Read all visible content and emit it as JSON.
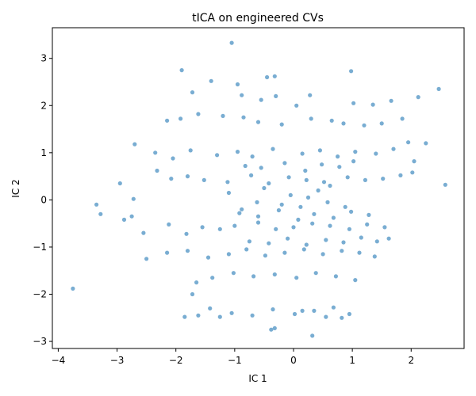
{
  "chart_data": {
    "type": "scatter",
    "title": "tICA on engineered CVs",
    "xlabel": "IC 1",
    "ylabel": "IC 2",
    "xlim": [
      -4.1,
      2.9
    ],
    "ylim": [
      -3.15,
      3.65
    ],
    "xticks": [
      "-4",
      "-3",
      "-2",
      "-1",
      "0",
      "1",
      "2"
    ],
    "yticks": [
      "-3",
      "-2",
      "-1",
      "0",
      "1",
      "2",
      "3"
    ],
    "grid": false,
    "point_color": "#1f77b4",
    "series": [
      {
        "x": [
          -1.05,
          -1.9,
          0.98,
          -0.45,
          -0.32,
          -0.95,
          -1.4,
          -1.72,
          -0.88,
          -0.55,
          -0.3,
          0.05,
          0.28,
          1.02,
          1.35,
          1.66,
          2.12,
          2.47,
          -2.15,
          -1.92,
          -1.62,
          -1.2,
          -0.85,
          -0.6,
          -0.2,
          0.3,
          0.65,
          0.85,
          1.2,
          1.5,
          1.85,
          2.25,
          -2.7,
          -2.35,
          -2.05,
          -1.75,
          -1.3,
          -0.95,
          -0.7,
          -0.35,
          0.15,
          0.45,
          0.75,
          1.05,
          1.4,
          1.7,
          1.95,
          2.05,
          -3.35,
          -3.28,
          -2.95,
          -2.72,
          -2.32,
          -2.08,
          -1.8,
          -1.52,
          -1.12,
          -0.72,
          -0.42,
          -0.08,
          0.22,
          0.52,
          0.92,
          1.22,
          1.52,
          1.82,
          2.02,
          2.58,
          -3.75,
          -2.88,
          -2.75,
          -2.55,
          -2.12,
          -1.82,
          -1.55,
          -1.25,
          -1.0,
          -0.6,
          -0.3,
          0.0,
          0.32,
          0.62,
          0.95,
          1.25,
          1.55,
          1.62,
          -2.5,
          -2.15,
          -1.8,
          -1.45,
          -1.1,
          -0.8,
          -0.48,
          -0.15,
          0.18,
          0.5,
          0.82,
          1.12,
          1.38,
          -1.65,
          -1.38,
          -1.02,
          -0.68,
          -0.32,
          0.05,
          0.38,
          0.72,
          1.05,
          -1.42,
          -1.05,
          -0.7,
          -0.35,
          0.02,
          0.35,
          0.68,
          0.95,
          -1.62,
          -1.25,
          -1.85,
          -1.72,
          -0.38,
          -0.32,
          0.15,
          0.32,
          0.55,
          0.82,
          -0.62,
          -0.05,
          0.12,
          0.42,
          0.58,
          -1.1,
          -0.88,
          -0.5,
          -0.2,
          0.25,
          0.62,
          0.88,
          -0.82,
          -0.55,
          -0.15,
          0.2,
          0.48,
          0.78,
          1.02,
          -0.92,
          -0.6,
          -0.25,
          0.08,
          0.35,
          0.68,
          0.98,
          1.28,
          -0.75,
          -0.42,
          -0.1,
          0.22,
          0.55,
          0.85,
          1.15,
          1.42
        ],
        "y": [
          3.33,
          2.75,
          2.73,
          2.6,
          2.62,
          2.45,
          2.52,
          2.28,
          2.22,
          2.12,
          2.2,
          2.0,
          2.22,
          2.05,
          2.02,
          2.1,
          2.18,
          2.35,
          1.68,
          1.72,
          1.82,
          1.78,
          1.75,
          1.65,
          1.6,
          1.72,
          1.68,
          1.62,
          1.58,
          1.62,
          1.72,
          1.2,
          1.18,
          1.0,
          0.88,
          1.05,
          0.95,
          1.02,
          0.92,
          1.08,
          0.98,
          1.05,
          0.92,
          1.02,
          0.98,
          1.08,
          1.22,
          0.82,
          -0.1,
          -0.3,
          0.35,
          0.02,
          0.62,
          0.45,
          0.5,
          0.42,
          0.38,
          0.52,
          0.35,
          0.48,
          0.42,
          0.38,
          0.48,
          0.42,
          0.45,
          0.52,
          0.58,
          0.32,
          -1.88,
          -0.42,
          -0.35,
          -0.7,
          -0.52,
          -0.72,
          -0.58,
          -0.62,
          -0.55,
          -0.48,
          -0.62,
          -0.58,
          -0.5,
          -0.55,
          -0.62,
          -0.52,
          -0.58,
          -0.82,
          -1.25,
          -1.12,
          -1.08,
          -1.22,
          -1.15,
          -1.05,
          -1.18,
          -1.12,
          -1.05,
          -1.15,
          -1.08,
          -1.12,
          -1.2,
          -1.75,
          -1.65,
          -1.55,
          -1.62,
          -1.58,
          -1.65,
          -1.55,
          -1.62,
          -1.7,
          -2.3,
          -2.4,
          -2.45,
          -2.32,
          -2.42,
          -2.35,
          -2.28,
          -2.42,
          -2.45,
          -2.48,
          -2.48,
          -2.0,
          -2.75,
          -2.72,
          -2.35,
          -2.88,
          -2.48,
          -2.5,
          -0.05,
          0.1,
          -0.15,
          0.2,
          -0.05,
          0.15,
          -0.2,
          0.25,
          -0.1,
          0.05,
          0.3,
          -0.15,
          0.72,
          0.68,
          0.78,
          0.62,
          0.75,
          0.7,
          0.82,
          -0.28,
          -0.35,
          -0.22,
          -0.42,
          -0.3,
          -0.38,
          -0.25,
          -0.32,
          -0.88,
          -0.92,
          -0.82,
          -0.95,
          -0.85,
          -0.9,
          -0.8,
          -0.88
        ]
      }
    ]
  }
}
